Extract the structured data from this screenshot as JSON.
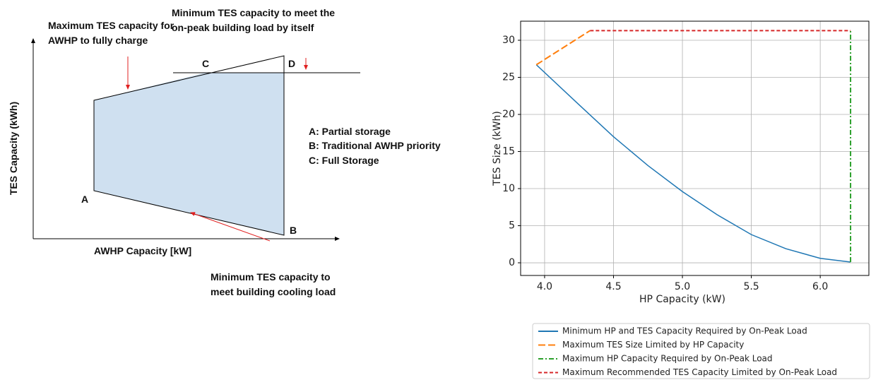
{
  "diagram": {
    "y_axis_label": "TES Capacity (kWh)",
    "x_axis_label": "AWHP Capacity [kW]",
    "points": [
      "A",
      "B",
      "C",
      "D"
    ],
    "annotations": [
      {
        "lines": [
          "Maximum TES capacity for",
          "AWHP to fully charge"
        ]
      },
      {
        "lines": [
          "Minimum TES capacity to meet the",
          "on-peak building load by itself"
        ]
      },
      {
        "lines": [
          "Minimum TES capacity to",
          "meet building cooling load"
        ]
      }
    ],
    "key": [
      "A: Partial storage",
      "B: Traditional AWHP priority",
      "C: Full Storage"
    ]
  },
  "chart_data": {
    "type": "line",
    "x_label": "HP Capacity (kW)",
    "y_label": "TES Size (kWh)",
    "xlim": [
      3.826,
      6.353
    ],
    "ylim": [
      -1.71,
      32.57
    ],
    "xticks": [
      {
        "value": 4,
        "label": "4.0"
      },
      4.5,
      {
        "value": 5,
        "label": "5.0"
      },
      5.5,
      {
        "value": 6,
        "label": "6.0"
      }
    ],
    "yticks": [
      0,
      5,
      10,
      15,
      20,
      25,
      30
    ],
    "grid": true,
    "legend": "below",
    "series": [
      {
        "name": "Minimum HP and TES Capacity Required by On-Peak Load",
        "color": "#1f77b4",
        "linestyle": "solid",
        "x": [
          3.94,
          4.25,
          4.5,
          4.75,
          5.0,
          5.25,
          5.5,
          5.75,
          6.0,
          6.22
        ],
        "values": [
          26.7,
          21.3,
          17.0,
          13.1,
          9.6,
          6.5,
          3.8,
          1.9,
          0.6,
          0.1
        ]
      },
      {
        "name": "Maximum TES Size Limited by HP Capacity",
        "color": "#ff7f0e",
        "linestyle": "dashed",
        "x": [
          3.94,
          4.33
        ],
        "values": [
          26.7,
          31.3
        ]
      },
      {
        "name": "Maximum HP Capacity Required by On-Peak Load",
        "color": "#2ca02c",
        "linestyle": "dashdot",
        "x": [
          6.22,
          6.22
        ],
        "values": [
          0.1,
          31.3
        ]
      },
      {
        "name": "Maximum Recommended TES Capacity Limited by On-Peak Load",
        "color": "#d62728",
        "linestyle": "dotted-dash",
        "x": [
          4.33,
          6.22
        ],
        "values": [
          31.3,
          31.3
        ]
      }
    ]
  }
}
